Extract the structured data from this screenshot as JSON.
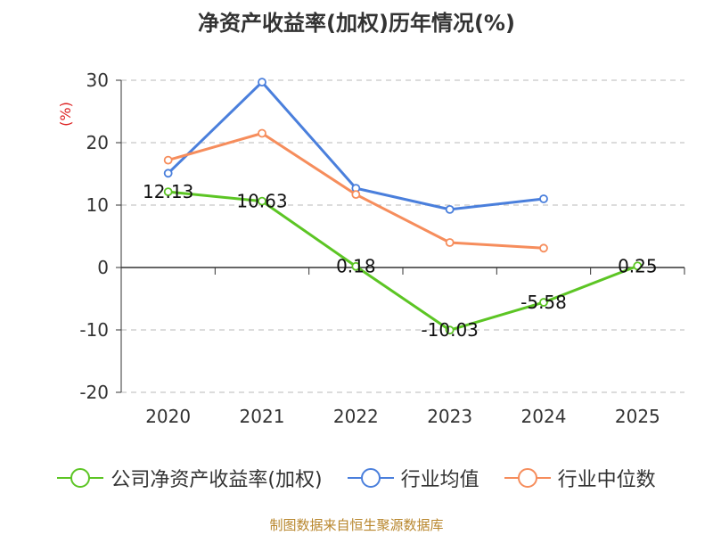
{
  "title": "净资产收益率(加权)历年情况(%)",
  "source": "制图数据来自恒生聚源数据库",
  "chart_data": {
    "type": "line",
    "title": "净资产收益率(加权)历年情况(%)",
    "ylabel": "(%)",
    "xlabel": "",
    "categories": [
      "2020",
      "2021",
      "2022",
      "2023",
      "2024",
      "2025"
    ],
    "ylim": [
      -20,
      30
    ],
    "yticks": [
      30,
      20,
      10,
      0,
      -10,
      -20
    ],
    "ytick_labels": [
      "30",
      "20",
      "10",
      "0",
      "-10",
      "-20"
    ],
    "grid": "horizontal dashed",
    "legend_position": "bottom",
    "series": [
      {
        "name": "公司净资产收益率(加权)",
        "color": "#5cc524",
        "values": [
          12.13,
          10.63,
          0.18,
          -10.03,
          -5.58,
          0.25
        ],
        "labels": [
          "12.13",
          "10.63",
          "0.18",
          "-10.03",
          "-5.58",
          "0.25"
        ]
      },
      {
        "name": "行业均值",
        "color": "#4a7fdc",
        "values": [
          15.1,
          29.7,
          12.7,
          9.3,
          11.0,
          null
        ]
      },
      {
        "name": "行业中位数",
        "color": "#f68d5c",
        "values": [
          17.2,
          21.5,
          11.7,
          4.0,
          3.1,
          null
        ]
      }
    ]
  }
}
